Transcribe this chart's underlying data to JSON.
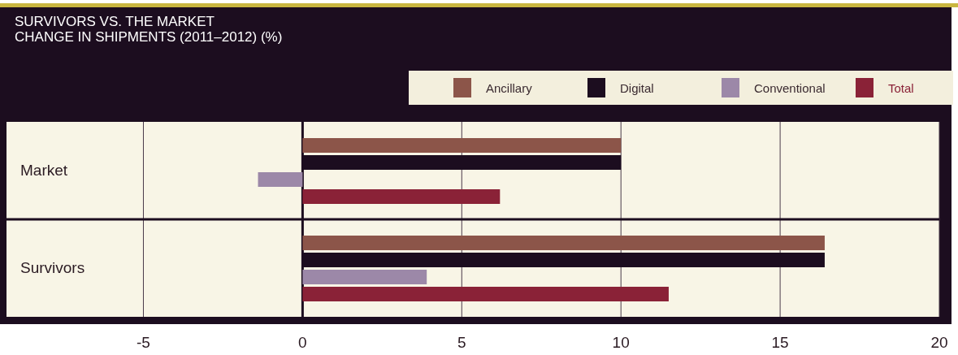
{
  "chart_data": {
    "type": "bar",
    "orientation": "horizontal",
    "title": "SURVIVORS VS. THE MARKET\nCHANGE IN SHIPMENTS (2011–2012) (%)",
    "categories": [
      "Market",
      "Survivors"
    ],
    "series": [
      {
        "name": "Ancillary",
        "color": "#8c5549",
        "values": [
          10,
          16.4
        ]
      },
      {
        "name": "Digital",
        "color": "#1c0d1f",
        "values": [
          10,
          16.4
        ]
      },
      {
        "name": "Conventional",
        "color": "#9c88a8",
        "values": [
          -1.4,
          3.9
        ]
      },
      {
        "name": "Total",
        "color": "#8a2237",
        "values": [
          6.2,
          11.5
        ]
      }
    ],
    "xlim": [
      -9.3,
      20
    ],
    "xticks": [
      -5,
      0,
      5,
      10,
      15,
      20
    ],
    "grid": "x",
    "legend": "top right"
  }
}
